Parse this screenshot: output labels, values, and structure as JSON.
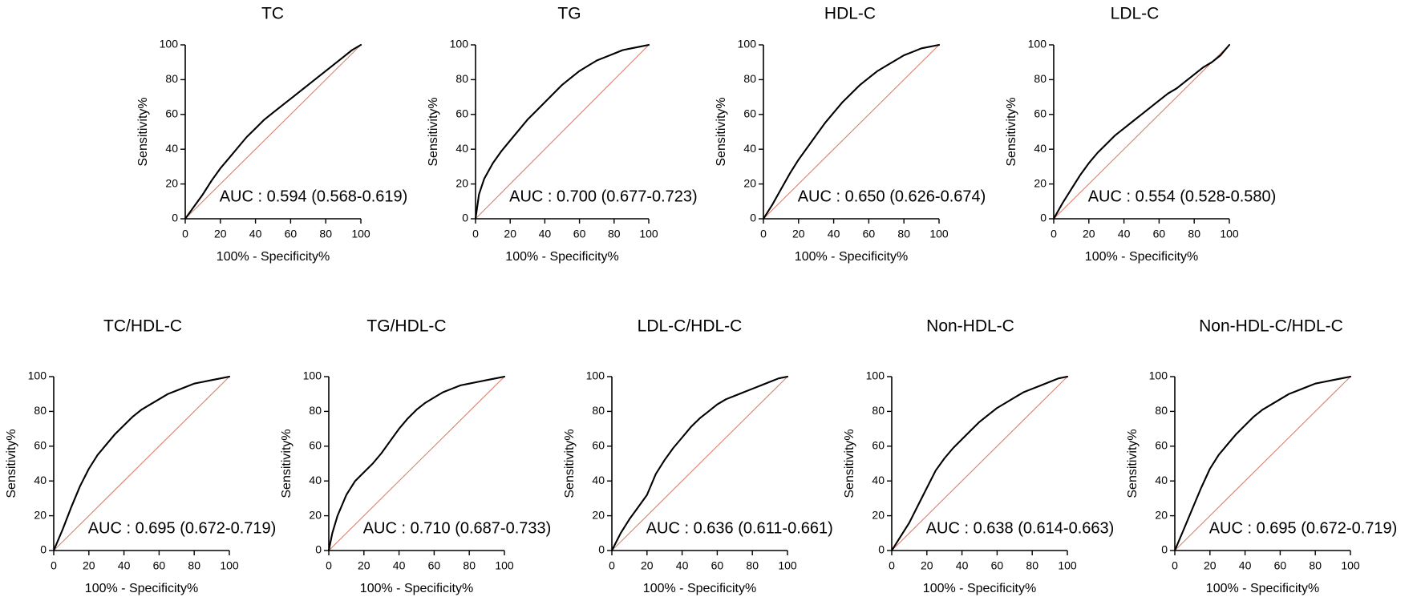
{
  "chart_data": [
    {
      "type": "line",
      "title": "TC",
      "xlabel": "100% - Specificity%",
      "ylabel": "Sensitivity%",
      "xlim": [
        0,
        100
      ],
      "ylim": [
        0,
        100
      ],
      "xticks": [
        "0",
        "20",
        "40",
        "60",
        "80",
        "100"
      ],
      "yticks": [
        "0",
        "20",
        "40",
        "60",
        "80",
        "100"
      ],
      "auc_label": "AUC : 0.594 (0.568-0.619)",
      "reference_line": true,
      "series": [
        {
          "name": "ROC",
          "x": [
            0,
            5,
            10,
            15,
            20,
            25,
            30,
            35,
            40,
            45,
            50,
            55,
            60,
            65,
            70,
            75,
            80,
            85,
            90,
            95,
            100
          ],
          "y": [
            0,
            7,
            14,
            22,
            29,
            35,
            41,
            47,
            52,
            57,
            61,
            65,
            69,
            73,
            77,
            81,
            85,
            89,
            93,
            97,
            100
          ]
        },
        {
          "name": "Reference",
          "x": [
            0,
            100
          ],
          "y": [
            0,
            100
          ]
        }
      ]
    },
    {
      "type": "line",
      "title": "TG",
      "xlabel": "100% - Specificity%",
      "ylabel": "Sensitivity%",
      "xlim": [
        0,
        100
      ],
      "ylim": [
        0,
        100
      ],
      "xticks": [
        "0",
        "20",
        "40",
        "60",
        "80",
        "100"
      ],
      "yticks": [
        "0",
        "20",
        "40",
        "60",
        "80",
        "100"
      ],
      "auc_label": "AUC : 0.700 (0.677-0.723)",
      "reference_line": true,
      "series": [
        {
          "name": "ROC",
          "x": [
            0,
            2,
            5,
            10,
            15,
            20,
            25,
            30,
            35,
            40,
            45,
            50,
            55,
            60,
            65,
            70,
            75,
            80,
            85,
            90,
            95,
            100
          ],
          "y": [
            0,
            14,
            23,
            32,
            39,
            45,
            51,
            57,
            62,
            67,
            72,
            77,
            81,
            85,
            88,
            91,
            93,
            95,
            97,
            98,
            99,
            100
          ]
        },
        {
          "name": "Reference",
          "x": [
            0,
            100
          ],
          "y": [
            0,
            100
          ]
        }
      ]
    },
    {
      "type": "line",
      "title": "HDL-C",
      "xlabel": "100% - Specificity%",
      "ylabel": "Sensitivity%",
      "xlim": [
        0,
        100
      ],
      "ylim": [
        0,
        100
      ],
      "xticks": [
        "0",
        "20",
        "40",
        "60",
        "80",
        "100"
      ],
      "yticks": [
        "0",
        "20",
        "40",
        "60",
        "80",
        "100"
      ],
      "auc_label": "AUC : 0.650 (0.626-0.674)",
      "reference_line": true,
      "series": [
        {
          "name": "ROC",
          "x": [
            0,
            5,
            10,
            15,
            20,
            25,
            30,
            35,
            40,
            45,
            50,
            55,
            60,
            65,
            70,
            75,
            80,
            85,
            90,
            95,
            100
          ],
          "y": [
            0,
            8,
            17,
            26,
            34,
            41,
            48,
            55,
            61,
            67,
            72,
            77,
            81,
            85,
            88,
            91,
            94,
            96,
            98,
            99,
            100
          ]
        },
        {
          "name": "Reference",
          "x": [
            0,
            100
          ],
          "y": [
            0,
            100
          ]
        }
      ]
    },
    {
      "type": "line",
      "title": "LDL-C",
      "xlabel": "100% - Specificity%",
      "ylabel": "Sensitivity%",
      "xlim": [
        0,
        100
      ],
      "ylim": [
        0,
        100
      ],
      "xticks": [
        "0",
        "20",
        "40",
        "60",
        "80",
        "100"
      ],
      "yticks": [
        "0",
        "20",
        "40",
        "60",
        "80",
        "100"
      ],
      "auc_label": "AUC : 0.554 (0.528-0.580)",
      "reference_line": true,
      "series": [
        {
          "name": "ROC",
          "x": [
            0,
            5,
            10,
            15,
            20,
            25,
            30,
            35,
            40,
            45,
            50,
            55,
            60,
            65,
            70,
            75,
            80,
            85,
            90,
            95,
            100
          ],
          "y": [
            0,
            9,
            17,
            25,
            32,
            38,
            43,
            48,
            52,
            56,
            60,
            64,
            68,
            72,
            75,
            79,
            83,
            87,
            90,
            94,
            100
          ]
        },
        {
          "name": "Reference",
          "x": [
            0,
            100
          ],
          "y": [
            0,
            100
          ]
        }
      ]
    },
    {
      "type": "line",
      "title": "TC/HDL-C",
      "xlabel": "100% - Specificity%",
      "ylabel": "Sensitivity%",
      "xlim": [
        0,
        100
      ],
      "ylim": [
        0,
        100
      ],
      "xticks": [
        "0",
        "20",
        "40",
        "60",
        "80",
        "100"
      ],
      "yticks": [
        "0",
        "20",
        "40",
        "60",
        "80",
        "100"
      ],
      "auc_label": "AUC : 0.695 (0.672-0.719)",
      "reference_line": true,
      "series": [
        {
          "name": "ROC",
          "x": [
            0,
            5,
            10,
            15,
            20,
            25,
            30,
            35,
            40,
            45,
            50,
            55,
            60,
            65,
            70,
            75,
            80,
            85,
            90,
            95,
            100
          ],
          "y": [
            0,
            12,
            25,
            37,
            47,
            55,
            61,
            67,
            72,
            77,
            81,
            84,
            87,
            90,
            92,
            94,
            96,
            97,
            98,
            99,
            100
          ]
        },
        {
          "name": "Reference",
          "x": [
            0,
            100
          ],
          "y": [
            0,
            100
          ]
        }
      ]
    },
    {
      "type": "line",
      "title": "TG/HDL-C",
      "xlabel": "100% - Specificity%",
      "ylabel": "Sensitivity%",
      "xlim": [
        0,
        100
      ],
      "ylim": [
        0,
        100
      ],
      "xticks": [
        "0",
        "20",
        "40",
        "60",
        "80",
        "100"
      ],
      "yticks": [
        "0",
        "20",
        "40",
        "60",
        "80",
        "100"
      ],
      "auc_label": "AUC : 0.710 (0.687-0.733)",
      "reference_line": true,
      "series": [
        {
          "name": "ROC",
          "x": [
            0,
            2,
            5,
            10,
            15,
            20,
            25,
            30,
            35,
            40,
            45,
            50,
            55,
            60,
            65,
            70,
            75,
            80,
            85,
            90,
            95,
            100
          ],
          "y": [
            0,
            10,
            20,
            32,
            40,
            45,
            50,
            56,
            63,
            70,
            76,
            81,
            85,
            88,
            91,
            93,
            95,
            96,
            97,
            98,
            99,
            100
          ]
        },
        {
          "name": "Reference",
          "x": [
            0,
            100
          ],
          "y": [
            0,
            100
          ]
        }
      ]
    },
    {
      "type": "line",
      "title": "LDL-C/HDL-C",
      "xlabel": "100% - Specificity%",
      "ylabel": "Sensitivity%",
      "xlim": [
        0,
        100
      ],
      "ylim": [
        0,
        100
      ],
      "xticks": [
        "0",
        "20",
        "40",
        "60",
        "80",
        "100"
      ],
      "yticks": [
        "0",
        "20",
        "40",
        "60",
        "80",
        "100"
      ],
      "auc_label": "AUC : 0.636 (0.611-0.661)",
      "reference_line": true,
      "series": [
        {
          "name": "ROC",
          "x": [
            0,
            5,
            10,
            15,
            20,
            25,
            30,
            35,
            40,
            45,
            50,
            55,
            60,
            65,
            70,
            75,
            80,
            85,
            90,
            95,
            100
          ],
          "y": [
            0,
            10,
            18,
            25,
            32,
            44,
            52,
            59,
            65,
            71,
            76,
            80,
            84,
            87,
            89,
            91,
            93,
            95,
            97,
            99,
            100
          ]
        },
        {
          "name": "Reference",
          "x": [
            0,
            100
          ],
          "y": [
            0,
            100
          ]
        }
      ]
    },
    {
      "type": "line",
      "title": "Non-HDL-C",
      "xlabel": "100% - Specificity%",
      "ylabel": "Sensitivity%",
      "xlim": [
        0,
        100
      ],
      "ylim": [
        0,
        100
      ],
      "xticks": [
        "0",
        "20",
        "40",
        "60",
        "80",
        "100"
      ],
      "yticks": [
        "0",
        "20",
        "40",
        "60",
        "80",
        "100"
      ],
      "auc_label": "AUC : 0.638 (0.614-0.663)",
      "reference_line": true,
      "series": [
        {
          "name": "ROC",
          "x": [
            0,
            5,
            10,
            15,
            20,
            25,
            30,
            35,
            40,
            45,
            50,
            55,
            60,
            65,
            70,
            75,
            80,
            85,
            90,
            95,
            100
          ],
          "y": [
            0,
            8,
            16,
            26,
            36,
            46,
            53,
            59,
            64,
            69,
            74,
            78,
            82,
            85,
            88,
            91,
            93,
            95,
            97,
            99,
            100
          ]
        },
        {
          "name": "Reference",
          "x": [
            0,
            100
          ],
          "y": [
            0,
            100
          ]
        }
      ]
    },
    {
      "type": "line",
      "title": "Non-HDL-C/HDL-C",
      "xlabel": "100% - Specificity%",
      "ylabel": "Sensitivity%",
      "xlim": [
        0,
        100
      ],
      "ylim": [
        0,
        100
      ],
      "xticks": [
        "0",
        "20",
        "40",
        "60",
        "80",
        "100"
      ],
      "yticks": [
        "0",
        "20",
        "40",
        "60",
        "80",
        "100"
      ],
      "auc_label": "AUC : 0.695 (0.672-0.719)",
      "reference_line": true,
      "series": [
        {
          "name": "ROC",
          "x": [
            0,
            5,
            10,
            15,
            20,
            25,
            30,
            35,
            40,
            45,
            50,
            55,
            60,
            65,
            70,
            75,
            80,
            85,
            90,
            95,
            100
          ],
          "y": [
            0,
            12,
            24,
            36,
            47,
            55,
            61,
            67,
            72,
            77,
            81,
            84,
            87,
            90,
            92,
            94,
            96,
            97,
            98,
            99,
            100
          ]
        },
        {
          "name": "Reference",
          "x": [
            0,
            100
          ],
          "y": [
            0,
            100
          ]
        }
      ]
    }
  ]
}
